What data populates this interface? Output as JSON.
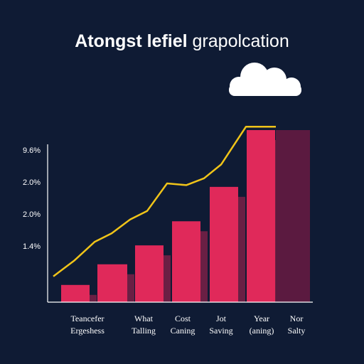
{
  "title": {
    "bold": "Atongst lefiel",
    "light": "grapolcation"
  },
  "icons": {
    "cloud": "cloud-icon"
  },
  "colors": {
    "background": "#0f1b34",
    "bar": "#e0295a",
    "bar_shadow": "#6a1f44",
    "last_bar": "#5b1a40",
    "line": "#f0c419",
    "axis": "#ffffff"
  },
  "chart_data": {
    "type": "bar",
    "title": "Atongst lefiel grapolcation",
    "xlabel": "",
    "ylabel": "",
    "y_tick_labels": [
      "9.6%",
      "2.0%",
      "2.0%",
      "1.4%"
    ],
    "categories": [
      [
        "Teancefer",
        "Ergeshess"
      ],
      [
        "What",
        "Talling"
      ],
      [
        "Cost",
        "Caning"
      ],
      [
        "Jot",
        "Saving"
      ],
      [
        "Year",
        "(aning)"
      ],
      [
        "Nor",
        "Salty"
      ]
    ],
    "bars": [
      {
        "value": 0.1
      },
      {
        "value": 0.22
      },
      {
        "value": 0.33
      },
      {
        "value": 0.47
      },
      {
        "value": 0.67
      },
      {
        "value": 1.0
      },
      {
        "value": 1.0,
        "muted": true
      }
    ],
    "line_values": [
      0.15,
      0.24,
      0.35,
      0.4,
      0.48,
      0.53,
      0.69,
      0.68,
      0.72,
      0.8,
      1.02,
      1.02
    ],
    "ylim": [
      0,
      1.05
    ],
    "grid": false,
    "legend": "none"
  }
}
